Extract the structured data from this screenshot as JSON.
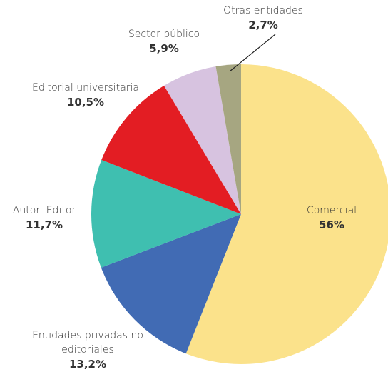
{
  "chart_data": {
    "type": "pie",
    "categories": [
      "Comercial",
      "Entidades privadas no editoriales",
      "Autor- Editor",
      "Editorial universitaria",
      "Sector público",
      "Otras entidades"
    ],
    "values": [
      56,
      13.2,
      11.7,
      10.5,
      5.9,
      2.7
    ],
    "value_labels": [
      "56%",
      "13,2%",
      "11,7%",
      "10,5%",
      "5,9%",
      "2,7%"
    ],
    "colors": [
      "#fbe28b",
      "#416bb4",
      "#3fbfb0",
      "#e31d23",
      "#d7c3e0",
      "#a6a681"
    ]
  }
}
